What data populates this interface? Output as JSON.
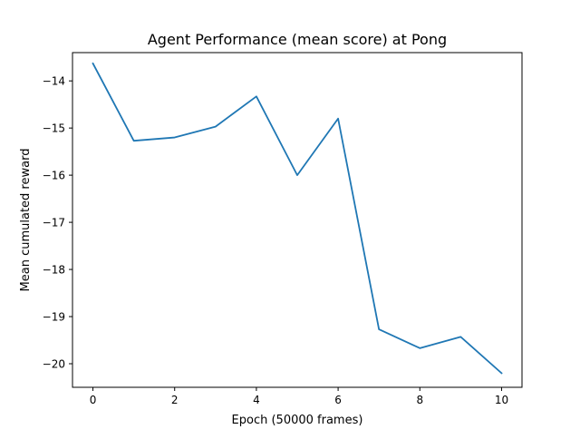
{
  "chart_data": {
    "type": "line",
    "title": "Agent Performance (mean score) at Pong",
    "xlabel": "Epoch (50000 frames)",
    "ylabel": "Mean cumulated reward",
    "xlim": [
      -0.5,
      10.5
    ],
    "ylim": [
      -20.5,
      -13.4
    ],
    "grid": false,
    "line_color": "#1f77b4",
    "x_ticks": [
      0,
      2,
      4,
      6,
      8,
      10
    ],
    "y_ticks": [
      -20,
      -19,
      -18,
      -17,
      -16,
      -15,
      -14
    ],
    "x": [
      0,
      1,
      2,
      3,
      4,
      5,
      6,
      7,
      8,
      9,
      10
    ],
    "values": [
      -13.63,
      -15.27,
      -15.2,
      -14.97,
      -14.33,
      -16.0,
      -14.8,
      -19.27,
      -19.67,
      -19.43,
      -20.2
    ]
  }
}
